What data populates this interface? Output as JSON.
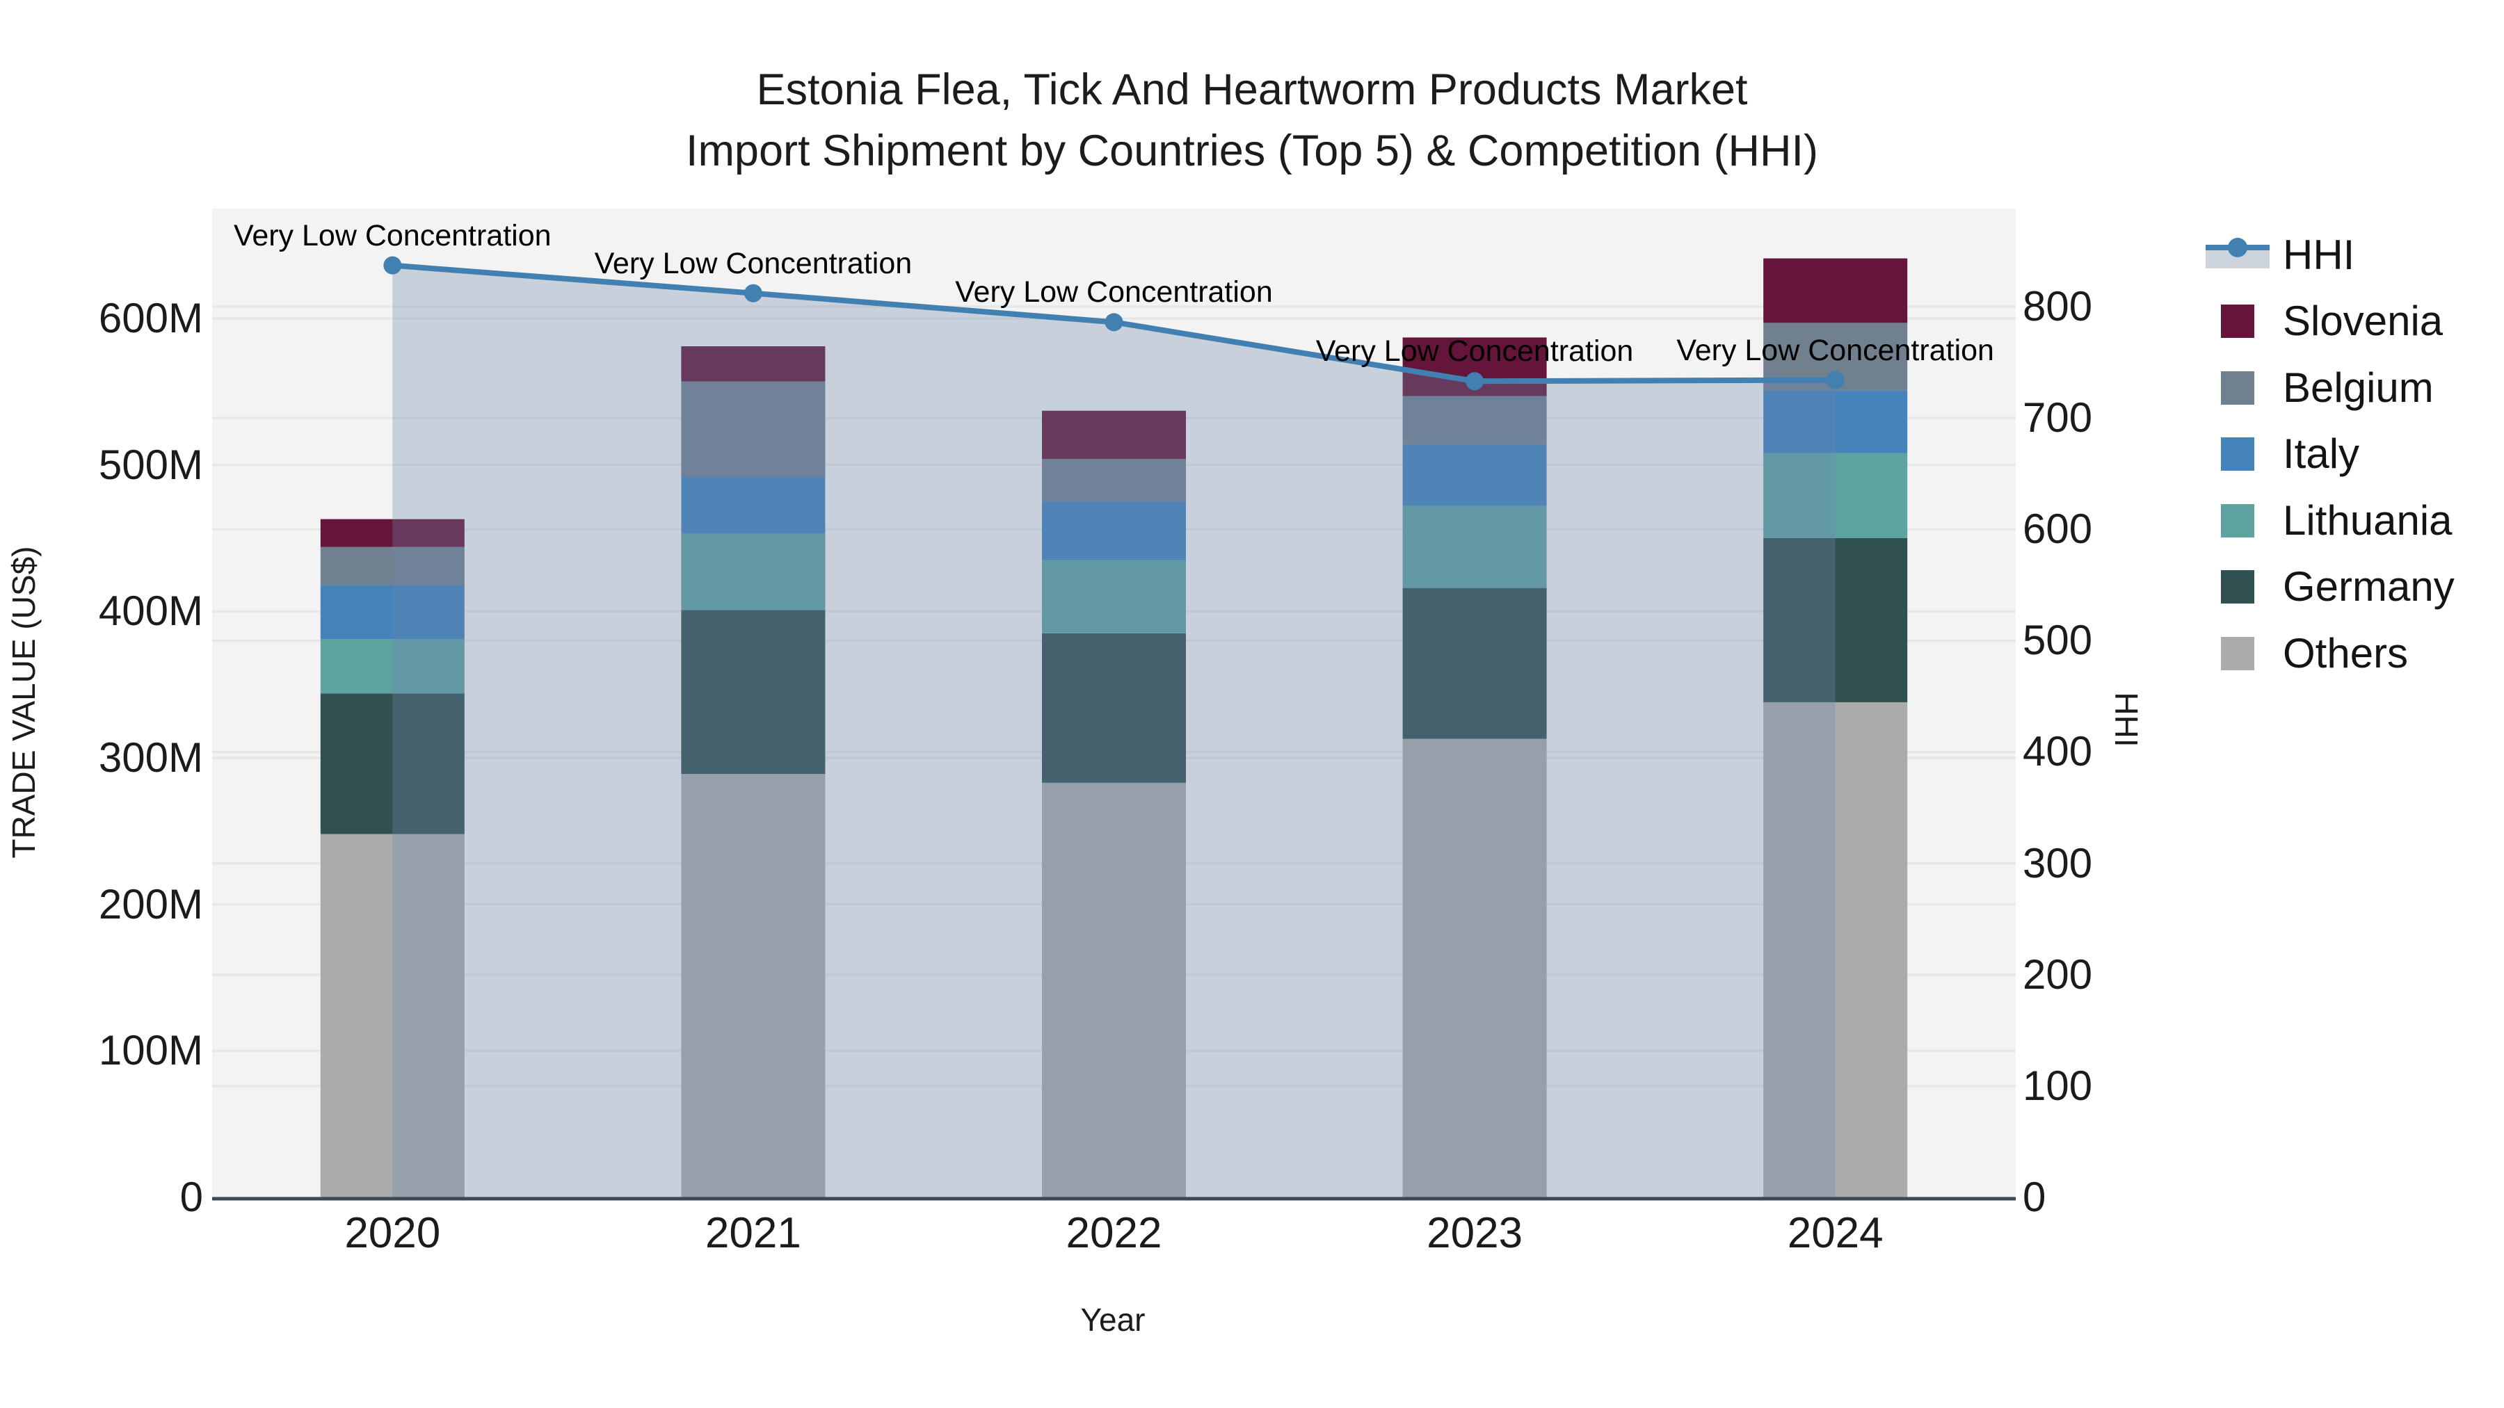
{
  "title": {
    "line1": "Estonia Flea, Tick And Heartworm Products Market",
    "line2": "Import Shipment by Countries (Top 5) & Competition (HHI)"
  },
  "chart_data": {
    "type": "combo",
    "subtypes": [
      "stacked-bar",
      "line-area"
    ],
    "categories": [
      "2020",
      "2021",
      "2022",
      "2023",
      "2024"
    ],
    "bar_value_unit": "Million US$",
    "series": [
      {
        "name": "Others",
        "color": "#ababab",
        "values": [
          248,
          289,
          283,
          313,
          338
        ]
      },
      {
        "name": "Germany",
        "color": "#315150",
        "values": [
          96,
          112,
          102,
          103,
          112
        ]
      },
      {
        "name": "Lithuania",
        "color": "#5fa3a1",
        "values": [
          37,
          52,
          50,
          56,
          58
        ]
      },
      {
        "name": "Italy",
        "color": "#4583bb",
        "values": [
          37,
          39,
          40,
          42,
          43
        ]
      },
      {
        "name": "Belgium",
        "color": "#71808f",
        "values": [
          26,
          65,
          29,
          33,
          46
        ]
      },
      {
        "name": "Slovenia",
        "color": "#641539",
        "values": [
          19,
          24,
          33,
          40,
          44
        ]
      }
    ],
    "bar_totals": [
      463,
      581,
      537,
      587,
      641
    ],
    "line_series": {
      "name": "HHI",
      "axis": "right",
      "color": "#4380b2",
      "area_fill_color": "rgba(110,135,170,0.32)",
      "values": [
        837,
        812,
        786,
        733,
        734
      ]
    },
    "annotations": [
      {
        "category": "2020",
        "text": "Very Low Concentration"
      },
      {
        "category": "2021",
        "text": "Very Low Concentration"
      },
      {
        "category": "2022",
        "text": "Very Low Concentration"
      },
      {
        "category": "2023",
        "text": "Very Low Concentration"
      },
      {
        "category": "2024",
        "text": "Very Low Concentration"
      }
    ],
    "left_axis": {
      "title": "TRADE VALUE (US$)",
      "tick_values": [
        0,
        100,
        200,
        300,
        400,
        500,
        600
      ],
      "tick_labels": [
        "0",
        "100M",
        "200M",
        "300M",
        "400M",
        "500M",
        "600M"
      ],
      "range": [
        0,
        675
      ],
      "grid": true
    },
    "right_axis": {
      "title": "HHI",
      "tick_values": [
        0,
        100,
        200,
        300,
        400,
        500,
        600,
        700,
        800
      ],
      "tick_labels": [
        "0",
        "100",
        "200",
        "300",
        "400",
        "500",
        "600",
        "700",
        "800"
      ],
      "range": [
        0,
        888
      ],
      "grid": true
    },
    "x_axis": {
      "title": "Year",
      "tick_labels": [
        "2020",
        "2021",
        "2022",
        "2023",
        "2024"
      ]
    },
    "legend": {
      "position": "right",
      "items": [
        {
          "label": "HHI",
          "type": "line",
          "color": "#4380b2"
        },
        {
          "label": "Slovenia",
          "type": "swatch",
          "color": "#641539"
        },
        {
          "label": "Belgium",
          "type": "swatch",
          "color": "#71808f"
        },
        {
          "label": "Italy",
          "type": "swatch",
          "color": "#4583bb"
        },
        {
          "label": "Lithuania",
          "type": "swatch",
          "color": "#5fa3a1"
        },
        {
          "label": "Germany",
          "type": "swatch",
          "color": "#315150"
        },
        {
          "label": "Others",
          "type": "swatch",
          "color": "#ababab"
        }
      ]
    },
    "colors": {
      "plot_background": "#f2f3f2",
      "gridline": "#e4e7e8",
      "axis_line": "#3d4852",
      "text": "#1b1b1b"
    }
  }
}
